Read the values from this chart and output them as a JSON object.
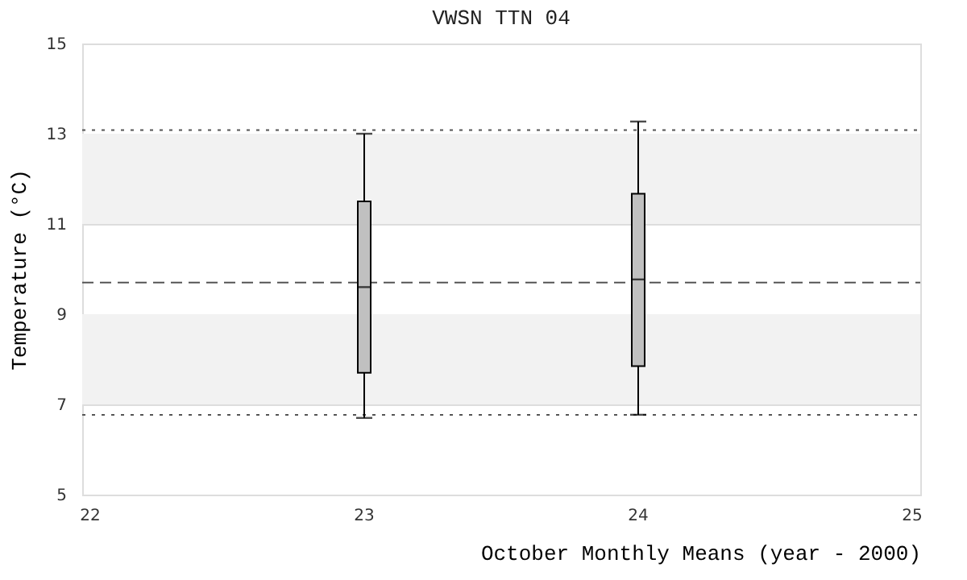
{
  "chart_data": {
    "type": "box",
    "title": "VWSN TTN 04",
    "xlabel": "October Monthly Means (year - 2000)",
    "ylabel": "Temperature (°C)",
    "x": [
      23,
      24
    ],
    "boxes": [
      {
        "low": 6.7,
        "q1": 7.7,
        "median": 9.6,
        "q3": 11.5,
        "high": 13.0
      },
      {
        "low": 6.77,
        "q1": 7.85,
        "median": 9.77,
        "q3": 11.67,
        "high": 13.27
      }
    ],
    "color": "#c0c0c0",
    "xlim": [
      22,
      25
    ],
    "xticks": [
      22,
      23,
      24,
      25
    ],
    "ylim": [
      5,
      15
    ],
    "yticks": [
      5,
      7,
      9,
      11,
      13,
      15
    ],
    "grid": "y",
    "bands": [
      {
        "axis": "y",
        "from": 7,
        "to": 9,
        "color": "#f2f2f2"
      },
      {
        "axis": "y",
        "from": 11,
        "to": 13,
        "color": "#f2f2f2"
      }
    ],
    "ref_lines": [
      {
        "axis": "y",
        "value": 13.08,
        "line_style": "dotted",
        "color": "#555555"
      },
      {
        "axis": "y",
        "value": 9.7,
        "line_style": "dashed",
        "color": "#555555"
      },
      {
        "axis": "y",
        "value": 6.77,
        "line_style": "dotted",
        "color": "#555555"
      }
    ]
  }
}
